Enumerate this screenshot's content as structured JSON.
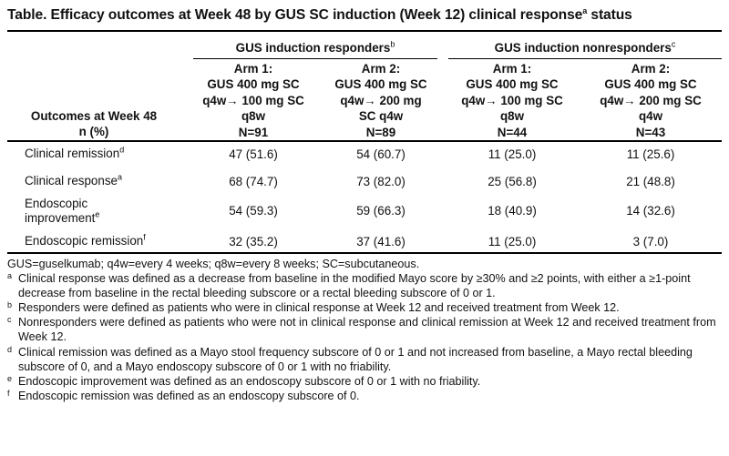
{
  "title": {
    "text_before": "Table. Efficacy outcomes at Week 48 by GUS SC induction (Week 12) clinical response",
    "sup": "a",
    "text_after": " status"
  },
  "groups": [
    {
      "label": "GUS induction responders",
      "sup": "b"
    },
    {
      "label": "GUS induction nonresponders",
      "sup": "c"
    }
  ],
  "row_header": {
    "line1": "Outcomes at Week 48",
    "line2": "n (%)"
  },
  "arms": [
    {
      "lines": [
        "Arm 1:",
        "GUS 400 mg SC",
        "q4w→ 100 mg SC",
        "q8w",
        "N=91"
      ]
    },
    {
      "lines": [
        "Arm 2:",
        "GUS 400 mg SC",
        "q4w→ 200 mg",
        "SC q4w",
        "N=89"
      ]
    },
    {
      "lines": [
        "Arm 1:",
        "GUS 400 mg SC",
        "q4w→ 100 mg SC",
        "q8w",
        "N=44"
      ]
    },
    {
      "lines": [
        "Arm 2:",
        "GUS 400 mg SC",
        "q4w→ 200 mg SC",
        "q4w",
        "N=43"
      ]
    }
  ],
  "rows": [
    {
      "label_lines": [
        "Clinical remission"
      ],
      "sup": "d",
      "values": [
        "47 (51.6)",
        "54 (60.7)",
        "11 (25.0)",
        "11 (25.6)"
      ]
    },
    {
      "label_lines": [
        "Clinical response"
      ],
      "sup": "a",
      "values": [
        "68 (74.7)",
        "73 (82.0)",
        "25 (56.8)",
        "21 (48.8)"
      ]
    },
    {
      "label_lines": [
        "Endoscopic",
        "improvement"
      ],
      "sup": "e",
      "values": [
        "54 (59.3)",
        "59 (66.3)",
        "18 (40.9)",
        "14 (32.6)"
      ]
    },
    {
      "label_lines": [
        "Endoscopic remission"
      ],
      "sup": "f",
      "values": [
        "32 (35.2)",
        "37 (41.6)",
        "11 (25.0)",
        "3 (7.0)"
      ]
    }
  ],
  "footnotes": {
    "abbrev": "GUS=guselkumab; q4w=every 4 weeks; q8w=every 8 weeks; SC=subcutaneous.",
    "notes": [
      {
        "mark": "a",
        "text": "Clinical response was defined as a decrease from baseline in the modified Mayo score by ≥30% and ≥2 points, with either a ≥1-point decrease from baseline in the rectal bleeding subscore or a rectal bleeding subscore of 0 or 1."
      },
      {
        "mark": "b",
        "text": "Responders were defined as patients who were in clinical response at Week 12 and received treatment from Week 12."
      },
      {
        "mark": "c",
        "text": "Nonresponders were defined as patients who were not in clinical response and clinical remission at Week 12 and received treatment from Week 12."
      },
      {
        "mark": "d",
        "text": "Clinical remission was defined as a Mayo stool frequency subscore of 0 or 1 and not increased from baseline, a Mayo rectal bleeding subscore of 0, and a Mayo endoscopy subscore of 0 or 1 with no friability."
      },
      {
        "mark": "e",
        "text": "Endoscopic improvement was defined as an endoscopy subscore of 0 or 1 with no friability."
      },
      {
        "mark": "f",
        "text": "Endoscopic remission was defined as an endoscopy subscore of 0."
      }
    ]
  }
}
